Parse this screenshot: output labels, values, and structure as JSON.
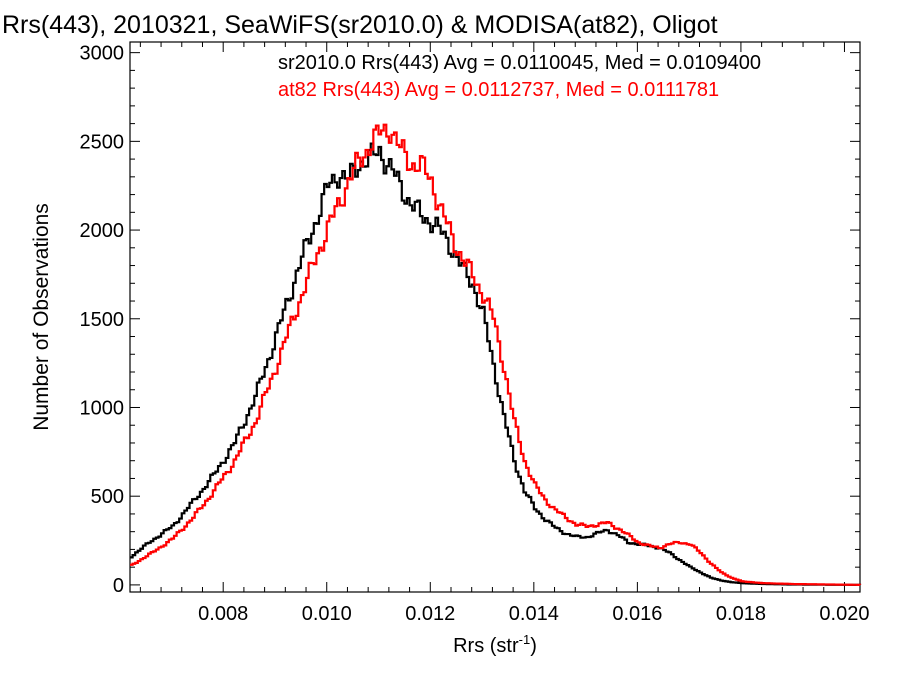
{
  "chart_data": {
    "type": "line",
    "step": true,
    "title": "Rrs(443), 2010321, SeaWiFS(sr2010.0) & MODISA(at82), Oligot",
    "xlabel_main": "Rrs (str",
    "xlabel_sup": "-1",
    "xlabel_end": ")",
    "ylabel": "Number of Observations",
    "xlim": [
      0.0062,
      0.0203
    ],
    "ylim": [
      -40,
      3060
    ],
    "xticks": [
      0.008,
      0.01,
      0.012,
      0.014,
      0.016,
      0.018,
      0.02
    ],
    "xtick_labels": [
      "0.008",
      "0.010",
      "0.012",
      "0.014",
      "0.016",
      "0.018",
      "0.020"
    ],
    "yticks": [
      0,
      500,
      1000,
      1500,
      2000,
      2500,
      3000
    ],
    "ytick_labels": [
      "0",
      "500",
      "1000",
      "1500",
      "2000",
      "2500",
      "3000"
    ],
    "grid": false,
    "annotations": [
      {
        "text": "sr2010.0 Rrs(443) Avg = 0.0110045, Med = 0.0109400",
        "color": "#000000"
      },
      {
        "text": "at82 Rrs(443) Avg = 0.0112737, Med = 0.0111781",
        "color": "#ff0000"
      }
    ],
    "series": [
      {
        "color": "#000000",
        "points": [
          [
            0.0062,
            160
          ],
          [
            0.0066,
            250
          ],
          [
            0.007,
            330
          ],
          [
            0.0074,
            470
          ],
          [
            0.0078,
            620
          ],
          [
            0.0082,
            800
          ],
          [
            0.0086,
            1060
          ],
          [
            0.009,
            1400
          ],
          [
            0.0094,
            1760
          ],
          [
            0.0098,
            2080
          ],
          [
            0.01,
            2240
          ],
          [
            0.0102,
            2320
          ],
          [
            0.0104,
            2280
          ],
          [
            0.0106,
            2380
          ],
          [
            0.0108,
            2400
          ],
          [
            0.011,
            2450
          ],
          [
            0.0112,
            2350
          ],
          [
            0.0114,
            2250
          ],
          [
            0.0116,
            2150
          ],
          [
            0.0118,
            2080
          ],
          [
            0.012,
            2050
          ],
          [
            0.0122,
            1980
          ],
          [
            0.0124,
            1900
          ],
          [
            0.0126,
            1780
          ],
          [
            0.0128,
            1700
          ],
          [
            0.013,
            1520
          ],
          [
            0.0132,
            1240
          ],
          [
            0.0134,
            950
          ],
          [
            0.0136,
            700
          ],
          [
            0.0138,
            530
          ],
          [
            0.014,
            430
          ],
          [
            0.0142,
            370
          ],
          [
            0.0144,
            320
          ],
          [
            0.0146,
            290
          ],
          [
            0.0148,
            270
          ],
          [
            0.015,
            270
          ],
          [
            0.0152,
            290
          ],
          [
            0.0154,
            310
          ],
          [
            0.0156,
            280
          ],
          [
            0.0158,
            240
          ],
          [
            0.016,
            230
          ],
          [
            0.0162,
            220
          ],
          [
            0.0164,
            210
          ],
          [
            0.0166,
            180
          ],
          [
            0.0168,
            140
          ],
          [
            0.017,
            100
          ],
          [
            0.0172,
            70
          ],
          [
            0.0174,
            40
          ],
          [
            0.0176,
            25
          ],
          [
            0.0178,
            15
          ],
          [
            0.018,
            10
          ],
          [
            0.0184,
            5
          ],
          [
            0.019,
            2
          ],
          [
            0.0203,
            0
          ]
        ]
      },
      {
        "color": "#ff0000",
        "points": [
          [
            0.0062,
            110
          ],
          [
            0.0066,
            180
          ],
          [
            0.007,
            260
          ],
          [
            0.0074,
            380
          ],
          [
            0.0078,
            530
          ],
          [
            0.0082,
            700
          ],
          [
            0.0086,
            920
          ],
          [
            0.009,
            1230
          ],
          [
            0.0094,
            1560
          ],
          [
            0.0098,
            1870
          ],
          [
            0.01,
            2010
          ],
          [
            0.0102,
            2140
          ],
          [
            0.0104,
            2280
          ],
          [
            0.0106,
            2380
          ],
          [
            0.0108,
            2480
          ],
          [
            0.011,
            2540
          ],
          [
            0.0112,
            2580
          ],
          [
            0.0114,
            2450
          ],
          [
            0.0116,
            2380
          ],
          [
            0.0118,
            2360
          ],
          [
            0.012,
            2280
          ],
          [
            0.0122,
            2100
          ],
          [
            0.0124,
            1960
          ],
          [
            0.0126,
            1840
          ],
          [
            0.0128,
            1740
          ],
          [
            0.013,
            1640
          ],
          [
            0.0132,
            1500
          ],
          [
            0.0134,
            1230
          ],
          [
            0.0136,
            920
          ],
          [
            0.0138,
            700
          ],
          [
            0.014,
            560
          ],
          [
            0.0142,
            480
          ],
          [
            0.0144,
            420
          ],
          [
            0.0146,
            380
          ],
          [
            0.0148,
            340
          ],
          [
            0.015,
            330
          ],
          [
            0.0152,
            340
          ],
          [
            0.0154,
            350
          ],
          [
            0.0156,
            320
          ],
          [
            0.0158,
            280
          ],
          [
            0.016,
            240
          ],
          [
            0.0162,
            220
          ],
          [
            0.0164,
            210
          ],
          [
            0.0166,
            230
          ],
          [
            0.0168,
            240
          ],
          [
            0.017,
            230
          ],
          [
            0.0172,
            180
          ],
          [
            0.0174,
            120
          ],
          [
            0.0176,
            70
          ],
          [
            0.0178,
            40
          ],
          [
            0.018,
            20
          ],
          [
            0.0184,
            10
          ],
          [
            0.019,
            5
          ],
          [
            0.0203,
            0
          ]
        ]
      }
    ]
  }
}
